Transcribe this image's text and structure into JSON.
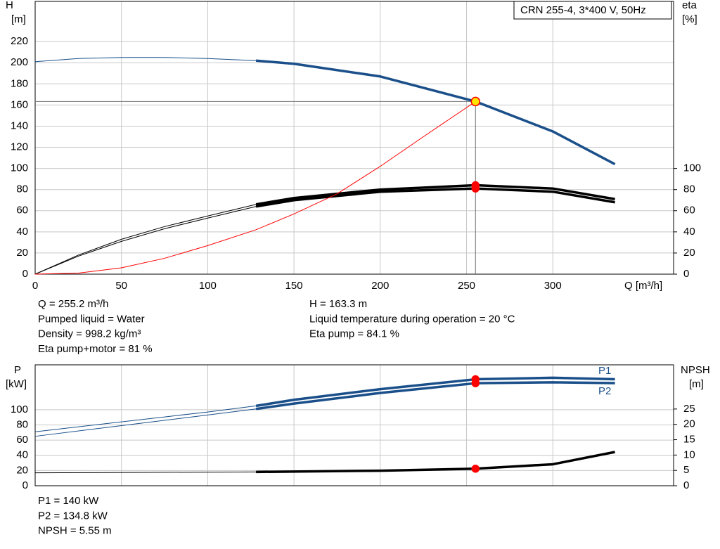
{
  "chart_data": [
    {
      "type": "line",
      "legend_box": "CRN 255-4, 3*400 V, 50Hz",
      "y_label": "H",
      "y_unit": "[m]",
      "y2_label": "eta",
      "y2_unit": "[%]",
      "x_label": "Q [m³/h]",
      "xlim": [
        0,
        370
      ],
      "xticks": [
        0,
        50,
        100,
        150,
        200,
        250,
        300
      ],
      "ylim": [
        0,
        258
      ],
      "yticks": [
        0,
        20,
        40,
        60,
        80,
        100,
        120,
        140,
        160,
        180,
        200,
        220
      ],
      "y2lim": [
        0,
        258
      ],
      "y2ticks": [
        0,
        20,
        40,
        60,
        80,
        100
      ],
      "grid": true,
      "duty_range": [
        128,
        336
      ],
      "duty_point": {
        "x": 255.2,
        "y": 163.3
      },
      "series": [
        {
          "color": "#1a4f8a",
          "marker": "#ffe400",
          "x": [
            0,
            25,
            50,
            75,
            100,
            128,
            150,
            200,
            255.2,
            300,
            336
          ],
          "values": [
            201,
            204,
            205,
            205,
            204,
            202,
            199,
            187,
            163.3,
            135,
            104
          ]
        },
        {
          "color": "#000000",
          "axis": "y2",
          "marker": "#ff0000",
          "x": [
            0,
            25,
            50,
            75,
            100,
            128,
            150,
            200,
            255.2,
            300,
            336
          ],
          "values": [
            0,
            18,
            33,
            45,
            55,
            66,
            72,
            80,
            84.1,
            81,
            71
          ]
        },
        {
          "color": "#000000",
          "axis": "y2",
          "marker": "#ff0000",
          "x": [
            0,
            25,
            50,
            75,
            100,
            128,
            150,
            200,
            255.2,
            300,
            336
          ],
          "values": [
            0,
            17,
            31,
            43,
            53,
            64,
            70,
            78,
            81,
            78,
            68
          ]
        },
        {
          "color": "#ff0000",
          "system": true,
          "x": [
            0,
            25,
            50,
            75,
            100,
            128,
            150,
            175,
            200,
            225,
            255.2
          ],
          "values": [
            0,
            1,
            6,
            15,
            27,
            42,
            57,
            76,
            102,
            130,
            163.3
          ]
        }
      ],
      "notes_left": [
        "Q = 255.2 m³/h",
        "Pumped liquid = Water",
        "Density = 998.2 kg/m³",
        "Eta pump+motor = 81 %"
      ],
      "notes_right": [
        "H = 163.3 m",
        "Liquid temperature during operation = 20 °C",
        "Eta pump = 84.1 %"
      ]
    },
    {
      "type": "line",
      "y_label": "P",
      "y_unit": "[kW]",
      "y2_label": "NPSH",
      "y2_unit": "[m]",
      "xlim": [
        0,
        370
      ],
      "xticks": [
        0,
        50,
        100,
        150,
        200,
        250,
        300
      ],
      "ylim": [
        0,
        159
      ],
      "yticks": [
        0,
        20,
        40,
        60,
        80,
        100
      ],
      "y2lim": [
        0,
        39.4
      ],
      "y2ticks": [
        0,
        5,
        10,
        15,
        20,
        25
      ],
      "grid": true,
      "duty_range": [
        128,
        336
      ],
      "series": [
        {
          "name": "P1",
          "color": "#1a4f8a",
          "marker": "#ff0000",
          "x": [
            0,
            50,
            100,
            128,
            150,
            200,
            255.2,
            300,
            336
          ],
          "values": [
            71,
            84,
            97,
            105,
            113,
            127,
            140,
            142,
            140
          ]
        },
        {
          "name": "P2",
          "color": "#1a4f8a",
          "marker": "#ff0000",
          "x": [
            0,
            50,
            100,
            128,
            150,
            200,
            255.2,
            300,
            336
          ],
          "values": [
            65,
            79,
            93,
            101,
            108,
            122,
            134.8,
            136,
            135
          ]
        },
        {
          "color": "#000000",
          "axis": "y2",
          "marker": "#ff0000",
          "x": [
            0,
            128,
            200,
            255.2,
            300,
            336
          ],
          "values": [
            4.2,
            4.5,
            4.9,
            5.55,
            7,
            11
          ]
        }
      ],
      "notes_left": [
        "P1 = 140 kW",
        "P2 = 134.8 kW",
        "NPSH = 5.55 m"
      ]
    }
  ]
}
